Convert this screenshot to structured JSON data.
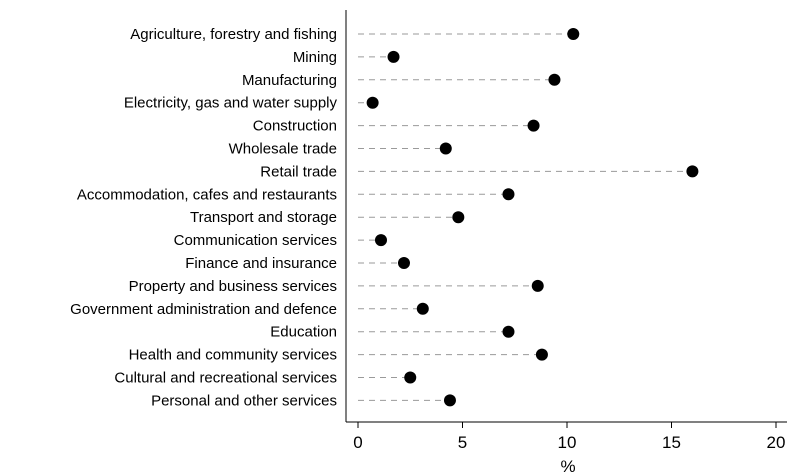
{
  "chart_data": {
    "type": "scatter",
    "orientation": "horizontal-dot",
    "categories": [
      "Agriculture, forestry and fishing",
      "Mining",
      "Manufacturing",
      "Electricity, gas and water supply",
      "Construction",
      "Wholesale trade",
      "Retail trade",
      "Accommodation, cafes and restaurants",
      "Transport and storage",
      "Communication services",
      "Finance and insurance",
      "Property and business services",
      "Government administration and defence",
      "Education",
      "Health and community services",
      "Cultural and recreational services",
      "Personal and other services"
    ],
    "values": [
      10.3,
      1.7,
      9.4,
      0.7,
      8.4,
      4.2,
      16.0,
      7.2,
      4.8,
      1.1,
      2.2,
      8.6,
      3.1,
      7.2,
      8.8,
      2.5,
      4.4
    ],
    "xlabel": "%",
    "xlim": [
      0,
      20
    ],
    "xticks": [
      0,
      5,
      10,
      15,
      20
    ],
    "grid": false,
    "leader_lines": "dashed",
    "marker_color": "#000000",
    "leader_color": "#9a9a9a"
  }
}
